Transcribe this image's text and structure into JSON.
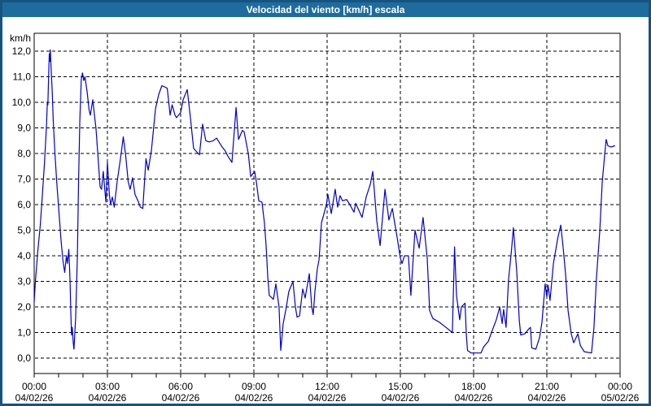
{
  "window": {
    "title": "Velocidad del viento [km/h] escala"
  },
  "colors": {
    "titlebar_bg": "#1E6C9E",
    "frame_border": "#17537F",
    "plot_background": "#FFFFFF",
    "axis": "#000000",
    "grid": "#000000",
    "line": "#0000CC",
    "text": "#000000"
  },
  "chart_data": {
    "type": "line",
    "title": "Velocidad del viento [km/h] escala",
    "series_name": "Velocidad del viento",
    "ylabel": "km/h",
    "ylim": [
      0,
      12
    ],
    "y_tick_labels": [
      "0,0",
      "1,0",
      "2,0",
      "3,0",
      "4,0",
      "5,0",
      "6,0",
      "7,0",
      "8,0",
      "9,0",
      "10,0",
      "11,0",
      "12,0"
    ],
    "xlim_hours": [
      0,
      24
    ],
    "x_ticks": [
      {
        "hour": 0,
        "time": "00:00",
        "date": "04/02/26"
      },
      {
        "hour": 3,
        "time": "03:00",
        "date": "04/02/26"
      },
      {
        "hour": 6,
        "time": "06:00",
        "date": "04/02/26"
      },
      {
        "hour": 9,
        "time": "09:00",
        "date": "04/02/26"
      },
      {
        "hour": 12,
        "time": "12:00",
        "date": "04/02/26"
      },
      {
        "hour": 15,
        "time": "15:00",
        "date": "04/02/26"
      },
      {
        "hour": 18,
        "time": "18:00",
        "date": "04/02/26"
      },
      {
        "hour": 21,
        "time": "21:00",
        "date": "04/02/26"
      },
      {
        "hour": 24,
        "time": "00:00",
        "date": "05/02/26"
      }
    ],
    "grid": {
      "horizontal": "dashed",
      "vertical_every_hours": 3,
      "minor_x_tick_every_hours": 1
    },
    "points": [
      [
        0,
        2.2
      ],
      [
        0.05,
        3
      ],
      [
        0.15,
        4.2
      ],
      [
        0.25,
        5.2
      ],
      [
        0.33,
        6.3
      ],
      [
        0.42,
        7.6
      ],
      [
        0.5,
        9
      ],
      [
        0.54,
        10
      ],
      [
        0.56,
        9.9
      ],
      [
        0.6,
        11.3
      ],
      [
        0.62,
        11.9
      ],
      [
        0.64,
        11.6
      ],
      [
        0.66,
        12.05
      ],
      [
        0.7,
        11.2
      ],
      [
        0.74,
        10.4
      ],
      [
        0.78,
        9.3
      ],
      [
        0.85,
        8
      ],
      [
        0.93,
        6.8
      ],
      [
        1,
        5.9
      ],
      [
        1.1,
        4.6
      ],
      [
        1.18,
        3.8
      ],
      [
        1.25,
        3.35
      ],
      [
        1.32,
        4
      ],
      [
        1.36,
        3.7
      ],
      [
        1.42,
        4.25
      ],
      [
        1.47,
        3
      ],
      [
        1.5,
        1.8
      ],
      [
        1.53,
        0.9
      ],
      [
        1.56,
        1.2
      ],
      [
        1.6,
        0.6
      ],
      [
        1.63,
        0.35
      ],
      [
        1.7,
        1.6
      ],
      [
        1.77,
        4
      ],
      [
        1.82,
        7
      ],
      [
        1.87,
        9.3
      ],
      [
        1.93,
        10.9
      ],
      [
        1.98,
        11.15
      ],
      [
        2.03,
        10.85
      ],
      [
        2.08,
        11
      ],
      [
        2.17,
        10.4
      ],
      [
        2.25,
        9.7
      ],
      [
        2.3,
        9.5
      ],
      [
        2.4,
        10.1
      ],
      [
        2.47,
        9.5
      ],
      [
        2.53,
        9
      ],
      [
        2.62,
        7.8
      ],
      [
        2.7,
        6.7
      ],
      [
        2.76,
        6.6
      ],
      [
        2.83,
        7.3
      ],
      [
        2.9,
        6.5
      ],
      [
        2.94,
        6.1
      ],
      [
        3,
        7.65
      ],
      [
        3.08,
        6.4
      ],
      [
        3.13,
        6
      ],
      [
        3.2,
        6.3
      ],
      [
        3.28,
        5.9
      ],
      [
        3.4,
        6.9
      ],
      [
        3.55,
        7.9
      ],
      [
        3.65,
        8.65
      ],
      [
        3.75,
        7.9
      ],
      [
        3.85,
        6.9
      ],
      [
        3.93,
        6.6
      ],
      [
        4.03,
        7.05
      ],
      [
        4.13,
        6.4
      ],
      [
        4.25,
        6.15
      ],
      [
        4.35,
        5.9
      ],
      [
        4.45,
        5.85
      ],
      [
        4.5,
        6.6
      ],
      [
        4.58,
        7.8
      ],
      [
        4.67,
        7.35
      ],
      [
        4.8,
        8.1
      ],
      [
        4.97,
        9.75
      ],
      [
        5.1,
        10.3
      ],
      [
        5.23,
        10.65
      ],
      [
        5.35,
        10.6
      ],
      [
        5.45,
        10.55
      ],
      [
        5.57,
        9.5
      ],
      [
        5.65,
        9.9
      ],
      [
        5.77,
        9.5
      ],
      [
        5.83,
        9.4
      ],
      [
        6,
        9.6
      ],
      [
        6.1,
        10.1
      ],
      [
        6.27,
        10.5
      ],
      [
        6.4,
        9.4
      ],
      [
        6.53,
        8.2
      ],
      [
        6.67,
        8.05
      ],
      [
        6.77,
        7.95
      ],
      [
        6.9,
        9.15
      ],
      [
        7.03,
        8.5
      ],
      [
        7.17,
        8.45
      ],
      [
        7.33,
        8.5
      ],
      [
        7.47,
        8.6
      ],
      [
        7.7,
        8.25
      ],
      [
        7.83,
        8.1
      ],
      [
        7.93,
        7.9
      ],
      [
        8.1,
        7.65
      ],
      [
        8.27,
        9.8
      ],
      [
        8.37,
        8.55
      ],
      [
        8.53,
        8.9
      ],
      [
        8.6,
        8.85
      ],
      [
        8.77,
        8
      ],
      [
        8.87,
        7.1
      ],
      [
        9.03,
        7.3
      ],
      [
        9.1,
        6.9
      ],
      [
        9.2,
        6.15
      ],
      [
        9.33,
        6.1
      ],
      [
        9.43,
        5.3
      ],
      [
        9.5,
        4.4
      ],
      [
        9.57,
        3.15
      ],
      [
        9.63,
        2.45
      ],
      [
        9.8,
        2.3
      ],
      [
        9.9,
        2.9
      ],
      [
        10.03,
        2
      ],
      [
        10.1,
        0.3
      ],
      [
        10.2,
        1.35
      ],
      [
        10.33,
        2
      ],
      [
        10.43,
        2.6
      ],
      [
        10.6,
        3
      ],
      [
        10.7,
        2
      ],
      [
        10.77,
        1.6
      ],
      [
        10.87,
        1.65
      ],
      [
        11,
        2.7
      ],
      [
        11.1,
        2.35
      ],
      [
        11.27,
        3.3
      ],
      [
        11.37,
        2
      ],
      [
        11.43,
        1.7
      ],
      [
        11.5,
        2.6
      ],
      [
        11.6,
        3.5
      ],
      [
        11.67,
        3.85
      ],
      [
        11.77,
        5.3
      ],
      [
        11.83,
        5.5
      ],
      [
        11.97,
        6
      ],
      [
        12.03,
        6.4
      ],
      [
        12.17,
        5.65
      ],
      [
        12.33,
        6.6
      ],
      [
        12.43,
        5.9
      ],
      [
        12.53,
        6.35
      ],
      [
        12.63,
        6.15
      ],
      [
        12.8,
        6.2
      ],
      [
        12.93,
        6
      ],
      [
        13.1,
        5.7
      ],
      [
        13.17,
        6.05
      ],
      [
        13.43,
        5.5
      ],
      [
        13.6,
        6.3
      ],
      [
        13.77,
        6.8
      ],
      [
        13.87,
        7.3
      ],
      [
        14.03,
        5.4
      ],
      [
        14.17,
        4.4
      ],
      [
        14.37,
        6.6
      ],
      [
        14.53,
        5.4
      ],
      [
        14.67,
        5.85
      ],
      [
        14.87,
        4.7
      ],
      [
        15,
        3.9
      ],
      [
        15.07,
        3.7
      ],
      [
        15.17,
        4
      ],
      [
        15.33,
        4
      ],
      [
        15.43,
        2.45
      ],
      [
        15.6,
        5
      ],
      [
        15.77,
        4.3
      ],
      [
        15.93,
        5.5
      ],
      [
        16.1,
        3.9
      ],
      [
        16.2,
        1.85
      ],
      [
        16.33,
        1.55
      ],
      [
        16.6,
        1.4
      ],
      [
        16.87,
        1.2
      ],
      [
        17.13,
        1
      ],
      [
        17.22,
        4.35
      ],
      [
        17.3,
        2.45
      ],
      [
        17.43,
        1.5
      ],
      [
        17.5,
        2
      ],
      [
        17.6,
        2.1
      ],
      [
        17.65,
        2.15
      ],
      [
        17.7,
        0.95
      ],
      [
        17.75,
        0.3
      ],
      [
        17.9,
        0.2
      ],
      [
        18.3,
        0.2
      ],
      [
        18.42,
        0.45
      ],
      [
        18.6,
        0.65
      ],
      [
        18.77,
        1.1
      ],
      [
        18.93,
        1.5
      ],
      [
        19.07,
        2
      ],
      [
        19.17,
        1.35
      ],
      [
        19.23,
        1.9
      ],
      [
        19.33,
        1.2
      ],
      [
        19.43,
        3.05
      ],
      [
        19.55,
        4.2
      ],
      [
        19.63,
        5.1
      ],
      [
        19.77,
        3.35
      ],
      [
        19.87,
        1.5
      ],
      [
        19.93,
        0.9
      ],
      [
        20.1,
        0.95
      ],
      [
        20.27,
        1.15
      ],
      [
        20.33,
        1.2
      ],
      [
        20.38,
        0.4
      ],
      [
        20.55,
        0.35
      ],
      [
        20.7,
        0.8
      ],
      [
        20.8,
        1.4
      ],
      [
        20.87,
        2.2
      ],
      [
        20.93,
        2.9
      ],
      [
        21,
        2.4
      ],
      [
        21.05,
        2.85
      ],
      [
        21.13,
        2.25
      ],
      [
        21.27,
        3.7
      ],
      [
        21.45,
        4.7
      ],
      [
        21.57,
        5.2
      ],
      [
        21.67,
        4.3
      ],
      [
        21.77,
        3.25
      ],
      [
        21.87,
        1.85
      ],
      [
        22,
        0.95
      ],
      [
        22.1,
        0.6
      ],
      [
        22.27,
        0.95
      ],
      [
        22.37,
        0.5
      ],
      [
        22.53,
        0.25
      ],
      [
        22.83,
        0.2
      ],
      [
        22.93,
        1.2
      ],
      [
        23.03,
        3.1
      ],
      [
        23.17,
        5
      ],
      [
        23.27,
        6.9
      ],
      [
        23.37,
        7.95
      ],
      [
        23.43,
        8.55
      ],
      [
        23.5,
        8.3
      ],
      [
        23.63,
        8.25
      ],
      [
        23.78,
        8.3
      ]
    ]
  }
}
